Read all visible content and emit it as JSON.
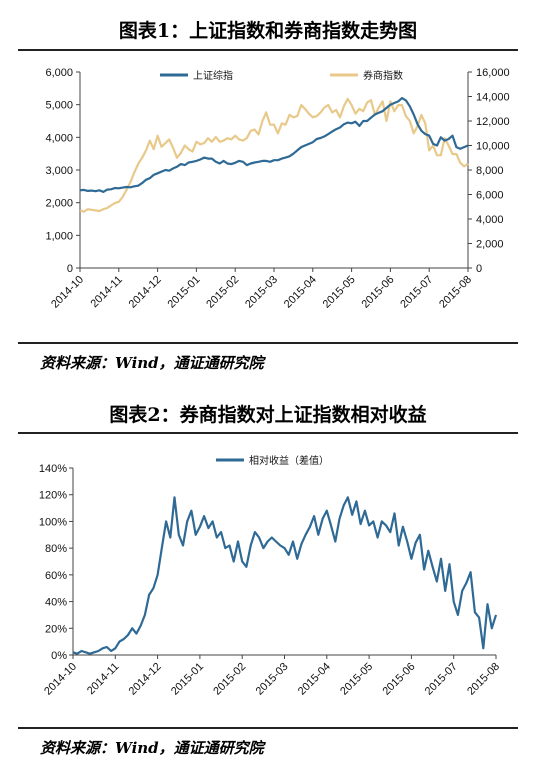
{
  "chart_data": [
    {
      "type": "line",
      "title": "图表1：上证指数和券商指数走势图",
      "source": "资料来源：Wind，通证通研究院",
      "left_axis": {
        "ticks": [
          "0",
          "1,000",
          "2,000",
          "3,000",
          "4,000",
          "5,000",
          "6,000"
        ],
        "ylim": [
          0,
          6000
        ]
      },
      "right_axis": {
        "ticks": [
          "0",
          "2,000",
          "4,000",
          "6,000",
          "8,000",
          "10,000",
          "12,000",
          "14,000",
          "16,000"
        ],
        "ylim": [
          0,
          16000
        ]
      },
      "x_ticks": [
        "2014-10",
        "2014-11",
        "2014-12",
        "2015-01",
        "2015-02",
        "2015-03",
        "2015-04",
        "2015-05",
        "2015-06",
        "2015-07",
        "2015-08"
      ],
      "legend_placement": "top",
      "series": [
        {
          "name": "上证综指",
          "axis": "left",
          "color": "#2e6a95",
          "x": [
            0,
            0.1,
            0.2,
            0.3,
            0.4,
            0.5,
            0.6,
            0.7,
            0.8,
            0.9,
            1.0,
            1.1,
            1.2,
            1.3,
            1.4,
            1.5,
            1.6,
            1.7,
            1.8,
            1.9,
            2.0,
            2.1,
            2.2,
            2.3,
            2.4,
            2.5,
            2.6,
            2.7,
            2.8,
            2.9,
            3.0,
            3.1,
            3.2,
            3.3,
            3.4,
            3.5,
            3.6,
            3.7,
            3.8,
            3.9,
            4.0,
            4.1,
            4.2,
            4.3,
            4.4,
            4.5,
            4.6,
            4.7,
            4.8,
            4.9,
            5.0,
            5.1,
            5.2,
            5.3,
            5.4,
            5.5,
            5.6,
            5.7,
            5.8,
            5.9,
            6.0,
            6.1,
            6.2,
            6.3,
            6.4,
            6.5,
            6.6,
            6.7,
            6.8,
            6.9,
            7.0,
            7.1,
            7.2,
            7.3,
            7.4,
            7.5,
            7.6,
            7.7,
            7.8,
            7.9,
            8.0,
            8.1,
            8.2,
            8.3,
            8.4,
            8.5,
            8.6,
            8.7,
            8.8,
            8.9,
            9.0,
            9.1,
            9.2,
            9.3,
            9.4,
            9.5,
            9.6,
            9.7,
            9.8,
            9.9,
            10.0
          ],
          "values": [
            2380,
            2390,
            2360,
            2370,
            2350,
            2380,
            2330,
            2400,
            2410,
            2450,
            2440,
            2460,
            2480,
            2470,
            2500,
            2520,
            2600,
            2700,
            2750,
            2850,
            2900,
            2950,
            3000,
            2980,
            3050,
            3100,
            3180,
            3150,
            3230,
            3250,
            3280,
            3320,
            3380,
            3350,
            3350,
            3250,
            3200,
            3280,
            3200,
            3180,
            3220,
            3280,
            3250,
            3150,
            3200,
            3230,
            3250,
            3280,
            3280,
            3250,
            3300,
            3300,
            3350,
            3380,
            3420,
            3500,
            3600,
            3700,
            3750,
            3800,
            3850,
            3950,
            3980,
            4030,
            4100,
            4180,
            4250,
            4300,
            4400,
            4450,
            4430,
            4480,
            4350,
            4500,
            4500,
            4600,
            4700,
            4750,
            4800,
            4900,
            5000,
            5050,
            5100,
            5200,
            5130,
            4950,
            4700,
            4400,
            4200,
            4100,
            4050,
            3800,
            3750,
            4000,
            3900,
            3950,
            4050,
            3700,
            3650,
            3700,
            3750
          ]
        },
        {
          "name": "券商指数",
          "axis": "right",
          "color": "#e8c98a",
          "x": [
            0,
            0.1,
            0.2,
            0.3,
            0.4,
            0.5,
            0.6,
            0.7,
            0.8,
            0.9,
            1.0,
            1.1,
            1.2,
            1.3,
            1.4,
            1.5,
            1.6,
            1.7,
            1.8,
            1.9,
            2.0,
            2.1,
            2.2,
            2.3,
            2.4,
            2.5,
            2.6,
            2.7,
            2.8,
            2.9,
            3.0,
            3.1,
            3.2,
            3.3,
            3.4,
            3.5,
            3.6,
            3.7,
            3.8,
            3.9,
            4.0,
            4.1,
            4.2,
            4.3,
            4.4,
            4.5,
            4.6,
            4.7,
            4.8,
            4.9,
            5.0,
            5.1,
            5.2,
            5.3,
            5.4,
            5.5,
            5.6,
            5.7,
            5.8,
            5.9,
            6.0,
            6.1,
            6.2,
            6.3,
            6.4,
            6.5,
            6.6,
            6.7,
            6.8,
            6.9,
            7.0,
            7.1,
            7.2,
            7.3,
            7.4,
            7.5,
            7.6,
            7.7,
            7.8,
            7.9,
            8.0,
            8.1,
            8.2,
            8.3,
            8.4,
            8.5,
            8.6,
            8.7,
            8.8,
            8.9,
            9.0,
            9.1,
            9.2,
            9.3,
            9.4,
            9.5,
            9.6,
            9.7,
            9.8,
            9.9,
            10.0
          ],
          "values": [
            4700,
            4600,
            4800,
            4750,
            4700,
            4650,
            4800,
            4900,
            5100,
            5300,
            5400,
            5800,
            6400,
            7000,
            7800,
            8500,
            9000,
            9600,
            10400,
            9700,
            10800,
            9900,
            10200,
            10500,
            9800,
            9000,
            9400,
            10000,
            9700,
            9500,
            10300,
            10100,
            10200,
            10600,
            10300,
            10700,
            10300,
            10400,
            10600,
            10500,
            10800,
            10500,
            10400,
            10600,
            11200,
            11300,
            10900,
            12000,
            12700,
            11700,
            11700,
            11000,
            11800,
            11700,
            12500,
            12300,
            12400,
            13300,
            13000,
            12600,
            12300,
            12400,
            12700,
            13100,
            13300,
            12700,
            12900,
            12300,
            13200,
            13800,
            13300,
            12600,
            13000,
            12800,
            13500,
            13700,
            12500,
            13100,
            13600,
            12000,
            13600,
            12800,
            13300,
            13300,
            12400,
            12000,
            11000,
            11600,
            12500,
            11800,
            9600,
            10000,
            9200,
            9200,
            10600,
            10000,
            9300,
            9300,
            8600,
            8300,
            8500
          ]
        }
      ]
    },
    {
      "type": "line",
      "title": "图表2：券商指数对上证指数相对收益",
      "source": "资料来源：Wind，通证通研究院",
      "y_ticks": [
        "0%",
        "20%",
        "40%",
        "60%",
        "80%",
        "100%",
        "120%",
        "140%"
      ],
      "ylim": [
        0,
        140
      ],
      "x_ticks": [
        "2014-10",
        "2014-11",
        "2014-12",
        "2015-01",
        "2015-02",
        "2015-03",
        "2015-04",
        "2015-05",
        "2015-06",
        "2015-07",
        "2015-08"
      ],
      "legend_placement": "top",
      "series": [
        {
          "name": "相对收益（差值）",
          "color": "#2e6a95",
          "x": [
            0,
            0.1,
            0.2,
            0.3,
            0.4,
            0.5,
            0.6,
            0.7,
            0.8,
            0.9,
            1.0,
            1.1,
            1.2,
            1.3,
            1.4,
            1.5,
            1.6,
            1.7,
            1.8,
            1.9,
            2.0,
            2.1,
            2.2,
            2.3,
            2.4,
            2.5,
            2.6,
            2.7,
            2.8,
            2.9,
            3.0,
            3.1,
            3.2,
            3.3,
            3.4,
            3.5,
            3.6,
            3.7,
            3.8,
            3.9,
            4.0,
            4.1,
            4.2,
            4.3,
            4.4,
            4.5,
            4.6,
            4.7,
            4.8,
            4.9,
            5.0,
            5.1,
            5.2,
            5.3,
            5.4,
            5.5,
            5.6,
            5.7,
            5.8,
            5.9,
            6.0,
            6.1,
            6.2,
            6.3,
            6.4,
            6.5,
            6.6,
            6.7,
            6.8,
            6.9,
            7.0,
            7.1,
            7.2,
            7.3,
            7.4,
            7.5,
            7.6,
            7.7,
            7.8,
            7.9,
            8.0,
            8.1,
            8.2,
            8.3,
            8.4,
            8.5,
            8.6,
            8.7,
            8.8,
            8.9,
            9.0,
            9.1,
            9.2,
            9.3,
            9.4,
            9.5,
            9.6,
            9.7,
            9.8,
            9.9,
            10.0
          ],
          "values": [
            2,
            1,
            3,
            2,
            1,
            2,
            3,
            5,
            6,
            3,
            5,
            10,
            12,
            15,
            20,
            16,
            22,
            30,
            45,
            50,
            60,
            80,
            100,
            88,
            118,
            90,
            82,
            100,
            108,
            90,
            96,
            104,
            95,
            100,
            88,
            92,
            80,
            82,
            70,
            85,
            70,
            66,
            82,
            92,
            88,
            80,
            85,
            88,
            85,
            82,
            80,
            75,
            85,
            72,
            83,
            90,
            96,
            104,
            90,
            102,
            108,
            97,
            85,
            102,
            112,
            118,
            105,
            115,
            98,
            108,
            97,
            100,
            88,
            100,
            97,
            92,
            106,
            82,
            96,
            85,
            72,
            84,
            90,
            64,
            78,
            66,
            55,
            72,
            48,
            68,
            40,
            30,
            48,
            54,
            62,
            32,
            28,
            5,
            38,
            20,
            30
          ]
        }
      ]
    }
  ]
}
